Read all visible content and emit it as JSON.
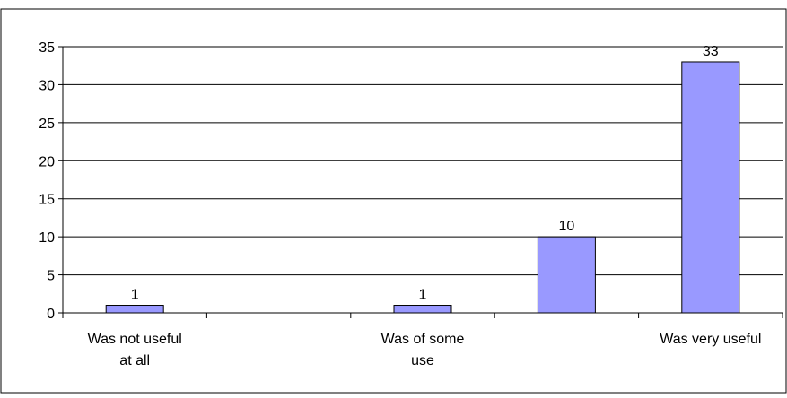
{
  "chart_data": {
    "type": "bar",
    "categories": [
      [
        "Was not useful",
        "at all"
      ],
      [
        ""
      ],
      [
        "Was of some",
        "use"
      ],
      [
        ""
      ],
      [
        "Was very useful"
      ]
    ],
    "values": [
      1,
      0,
      1,
      10,
      33
    ],
    "data_labels": [
      "1",
      "",
      "1",
      "10",
      "33"
    ],
    "ylim": [
      0,
      35
    ],
    "yticks": [
      0,
      5,
      10,
      15,
      20,
      25,
      30,
      35
    ],
    "grid": true,
    "legend": "none",
    "colors": {
      "bar_fill": "#9999ff",
      "bar_stroke": "#000000",
      "grid": "#000000",
      "frame": "#000000"
    }
  }
}
